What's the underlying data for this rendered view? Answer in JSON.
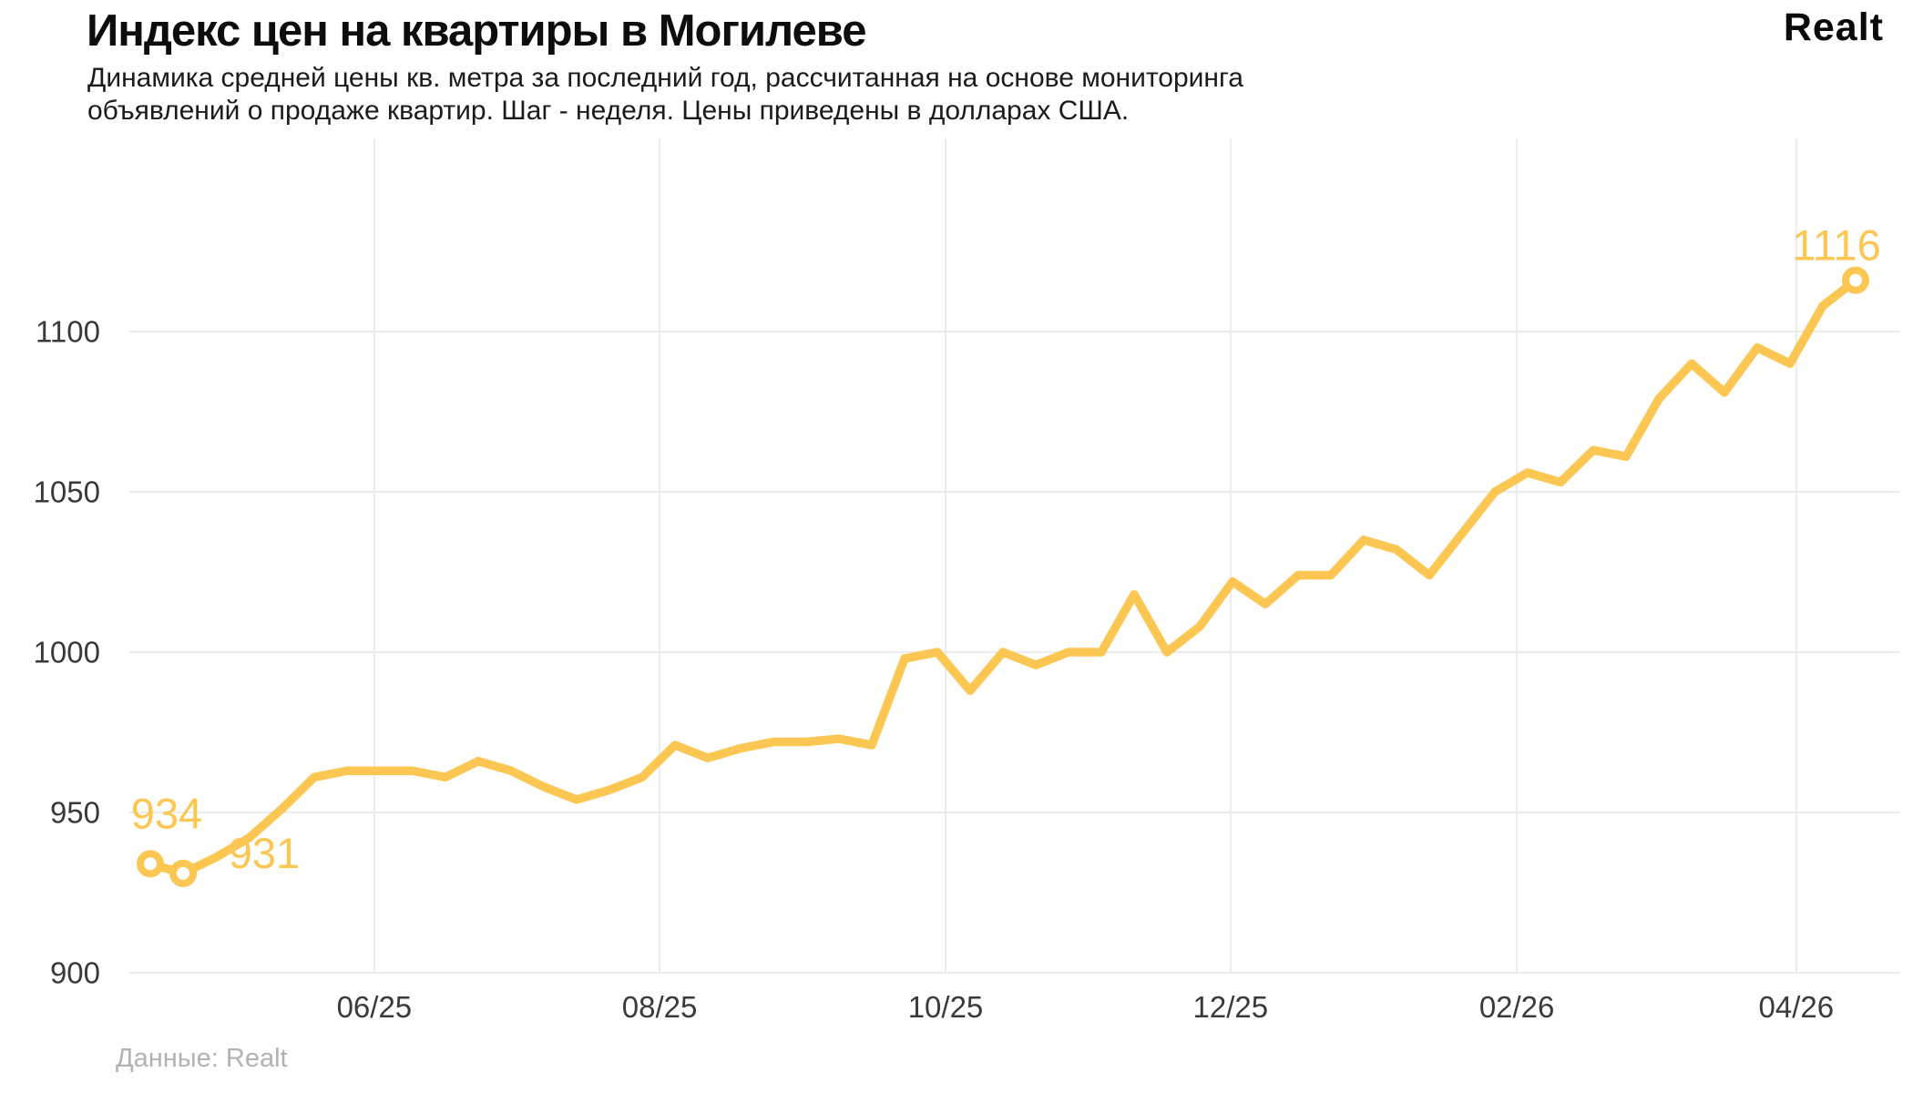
{
  "header": {
    "title": "Индекс цен на квартиры в Могилеве",
    "subtitle_lines": [
      "Динамика средней цены кв. метра за последний год, рассчитанная на основе мониторинга",
      "объявлений о продаже квартир. Шаг - неделя. Цены приведены в долларах США."
    ],
    "logo": "Realt"
  },
  "footer": {
    "source": "Данные: Realt"
  },
  "chart_data": {
    "type": "line",
    "title": "Индекс цен на квартиры в Могилеве",
    "unit": "USD за кв. метр",
    "step": "неделя",
    "grid": true,
    "line_color": "#FBC752",
    "grid_color": "#ececec",
    "axis_text_color": "#3a3a3a",
    "marker_fill": "#ffffff",
    "y_ticks": [
      900,
      950,
      1000,
      1050,
      1100
    ],
    "ylim": [
      900,
      1130
    ],
    "x_ticks": [
      {
        "label": "06/25",
        "week": 6.83
      },
      {
        "label": "08/25",
        "week": 15.53
      },
      {
        "label": "10/25",
        "week": 24.25
      },
      {
        "label": "12/25",
        "week": 32.94
      },
      {
        "label": "02/26",
        "week": 41.67
      },
      {
        "label": "04/26",
        "week": 50.19
      }
    ],
    "series": [
      {
        "name": "Средняя цена кв. метра, USD",
        "values": [
          934,
          931,
          936,
          942,
          951,
          961,
          963,
          963,
          963,
          961,
          966,
          963,
          958,
          954,
          957,
          961,
          971,
          967,
          970,
          972,
          972,
          973,
          971,
          998,
          1000,
          988,
          1000,
          996,
          1000,
          1000,
          1018,
          1000,
          1008,
          1022,
          1015,
          1024,
          1024,
          1035,
          1032,
          1024,
          1037,
          1050,
          1056,
          1053,
          1063,
          1061,
          1079,
          1090,
          1081,
          1095,
          1090,
          1108,
          1116
        ]
      }
    ],
    "point_labels": [
      {
        "index": 0,
        "text": "934"
      },
      {
        "index": 1,
        "text": "931"
      },
      {
        "index": 52,
        "text": "1116"
      }
    ],
    "markers_at": [
      0,
      1,
      52
    ]
  }
}
